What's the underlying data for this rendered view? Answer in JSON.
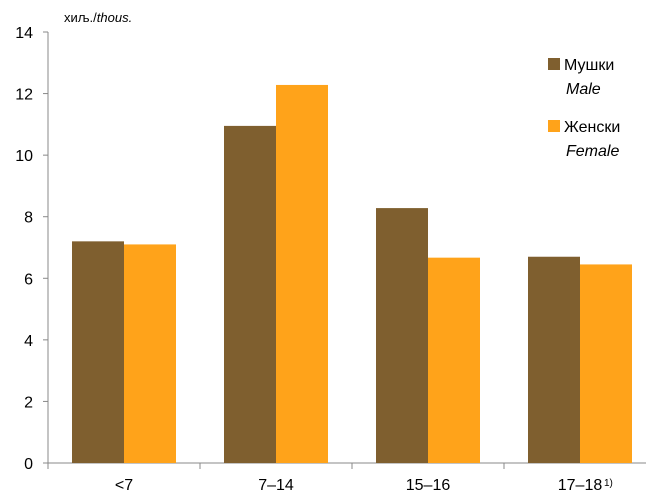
{
  "chart_data": {
    "type": "bar",
    "categories": [
      "<7",
      "7–14",
      "15–16",
      "17–18"
    ],
    "category_footnote": {
      "index": 3,
      "mark": "1)"
    },
    "series": [
      {
        "name": "Мушки",
        "name_en": "Male",
        "color": "#7f5f2f",
        "values": [
          7.2,
          10.95,
          8.28,
          6.7
        ]
      },
      {
        "name": "Женски",
        "name_en": "Female",
        "color": "#ffa31a",
        "values": [
          7.1,
          12.28,
          6.67,
          6.45
        ]
      }
    ],
    "unit_label": {
      "main": "хиљ./",
      "italic": "thous."
    },
    "ylim": [
      0,
      14
    ],
    "yticks": [
      0,
      2,
      4,
      6,
      8,
      10,
      12,
      14
    ],
    "grid": false,
    "legend_position": "top-right"
  }
}
